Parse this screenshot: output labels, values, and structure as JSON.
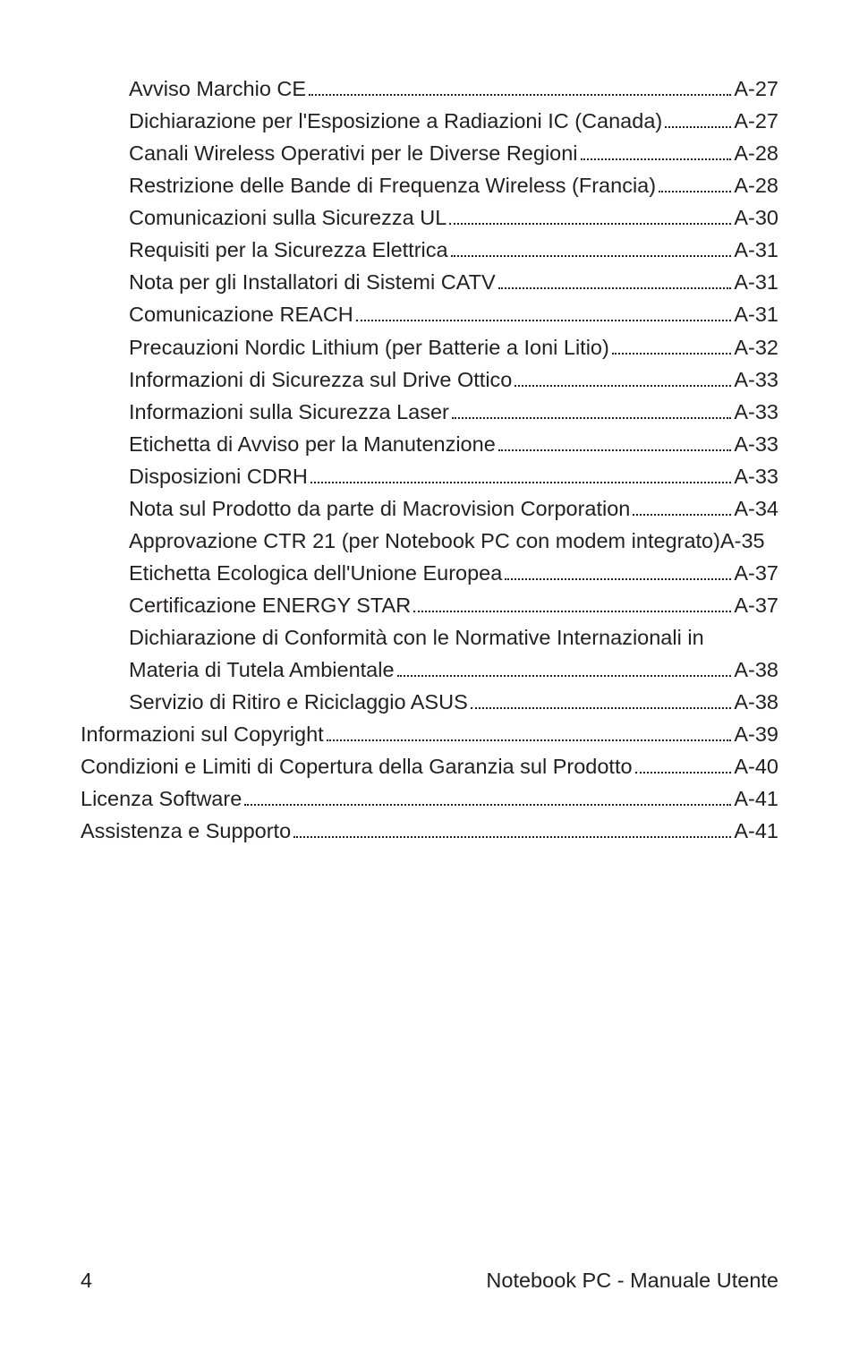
{
  "toc": [
    {
      "level": 2,
      "title": "Avviso Marchio CE",
      "page": "A-27",
      "dots": true
    },
    {
      "level": 2,
      "title": "Dichiarazione per l'Esposizione a Radiazioni IC (Canada)",
      "page": "A-27",
      "dots": true
    },
    {
      "level": 2,
      "title": "Canali Wireless Operativi per le Diverse Regioni",
      "page": "A-28",
      "dots": true
    },
    {
      "level": 2,
      "title": "Restrizione delle Bande di Frequenza Wireless (Francia)",
      "page": "A-28",
      "dots": true
    },
    {
      "level": 2,
      "title": "Comunicazioni sulla Sicurezza UL",
      "page": "A-30",
      "dots": true
    },
    {
      "level": 2,
      "title": "Requisiti per la Sicurezza Elettrica",
      "page": "A-31",
      "dots": true
    },
    {
      "level": 2,
      "title": "Nota per gli Installatori di Sistemi CATV",
      "page": "A-31",
      "dots": true
    },
    {
      "level": 2,
      "title": "Comunicazione REACH",
      "page": "A-31",
      "dots": true
    },
    {
      "level": 2,
      "title": "Precauzioni Nordic Lithium (per Batterie a Ioni Litio)",
      "page": "A-32",
      "dots": true
    },
    {
      "level": 2,
      "title": "Informazioni di Sicurezza sul Drive Ottico",
      "page": "A-33",
      "dots": true
    },
    {
      "level": 2,
      "title": "Informazioni sulla Sicurezza Laser",
      "page": "A-33",
      "dots": true
    },
    {
      "level": 2,
      "title": "Etichetta di Avviso per la Manutenzione",
      "page": "A-33",
      "dots": true
    },
    {
      "level": 2,
      "title": "Disposizioni CDRH",
      "page": "A-33",
      "dots": true
    },
    {
      "level": 2,
      "title": "Nota sul Prodotto da parte di Macrovision Corporation ",
      "page": "A-34",
      "dots": true
    },
    {
      "level": 2,
      "title": "Approvazione CTR 21 (per Notebook PC con modem integrato)",
      "page": "A-35",
      "dots": false
    },
    {
      "level": 2,
      "title": "Etichetta Ecologica dell'Unione Europea",
      "page": "A-37",
      "dots": true
    },
    {
      "level": 2,
      "title": "Certificazione ENERGY STAR",
      "page": "A-37",
      "dots": true
    },
    {
      "level": 2,
      "title": "Dichiarazione di Conformità con le Normative Internazionali in Materia di Tutela Ambientale ",
      "page": "A-38",
      "dots": true,
      "wrap": true
    },
    {
      "level": 2,
      "title": "Servizio di Ritiro e Riciclaggio ASUS",
      "page": "A-38",
      "dots": true
    },
    {
      "level": 1,
      "title": "Informazioni sul Copyright",
      "page": "A-39",
      "dots": true
    },
    {
      "level": 1,
      "title": "Condizioni e Limiti di Copertura  della Garanzia sul Prodotto",
      "page": "A-40",
      "dots": true
    },
    {
      "level": 1,
      "title": "Licenza Software",
      "page": "A-41",
      "dots": true
    },
    {
      "level": 1,
      "title": "Assistenza e Supporto",
      "page": "A-41",
      "dots": true
    }
  ],
  "footer": {
    "pageNumber": "4",
    "bookTitle": "Notebook PC - Manuale Utente"
  }
}
